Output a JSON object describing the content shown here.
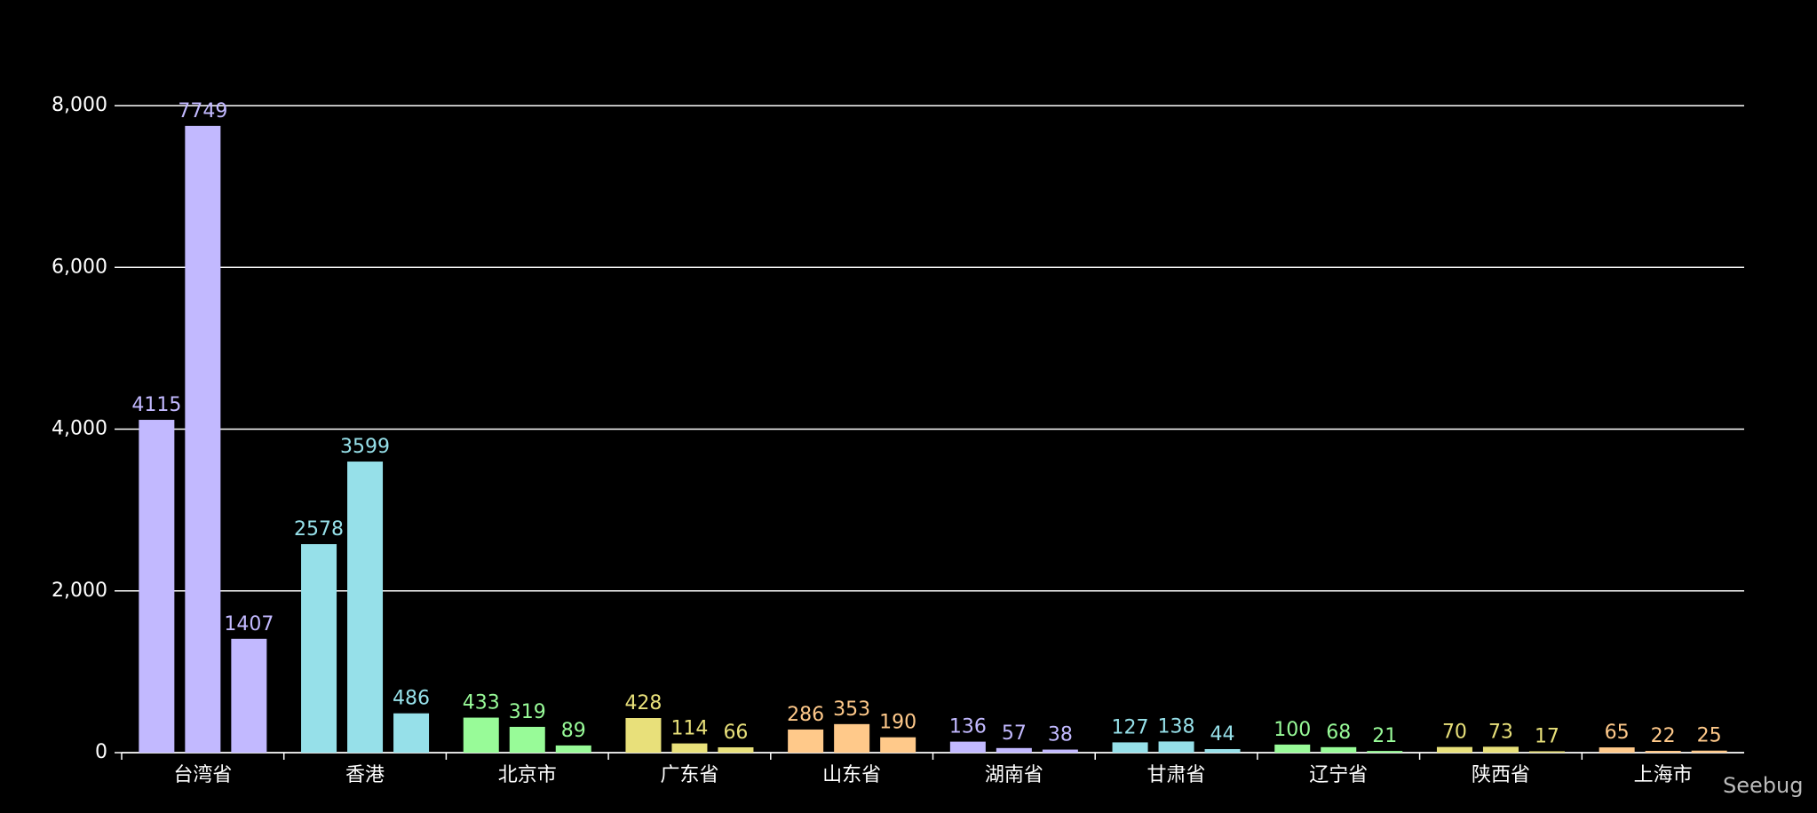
{
  "chart_data": {
    "type": "grouped-bar",
    "categories": [
      "台湾省",
      "香港",
      "北京市",
      "广东省",
      "山东省",
      "湖南省",
      "甘肃省",
      "辽宁省",
      "陕西省",
      "上海市"
    ],
    "values": [
      [
        4115,
        7749,
        1407
      ],
      [
        2578,
        3599,
        486
      ],
      [
        433,
        319,
        89
      ],
      [
        428,
        114,
        66
      ],
      [
        286,
        353,
        190
      ],
      [
        136,
        57,
        38
      ],
      [
        127,
        138,
        44
      ],
      [
        100,
        68,
        21
      ],
      [
        70,
        73,
        17
      ],
      [
        65,
        22,
        25
      ]
    ],
    "colors": [
      "#c2b9ff",
      "#96e0e9",
      "#98fb98",
      "#e8e07a",
      "#ffc98a",
      "#c2b9ff",
      "#96e0e9",
      "#98fb98",
      "#e8e07a",
      "#ffc98a"
    ],
    "ylim": [
      0,
      8000
    ],
    "yticks": [
      0,
      {
        "value": 2000,
        "label": "2,000"
      },
      {
        "value": 4000,
        "label": "4,000"
      },
      {
        "value": 6000,
        "label": "6,000"
      },
      {
        "value": 8000,
        "label": "8,000"
      }
    ],
    "grid": true,
    "watermark": "Seebug"
  }
}
